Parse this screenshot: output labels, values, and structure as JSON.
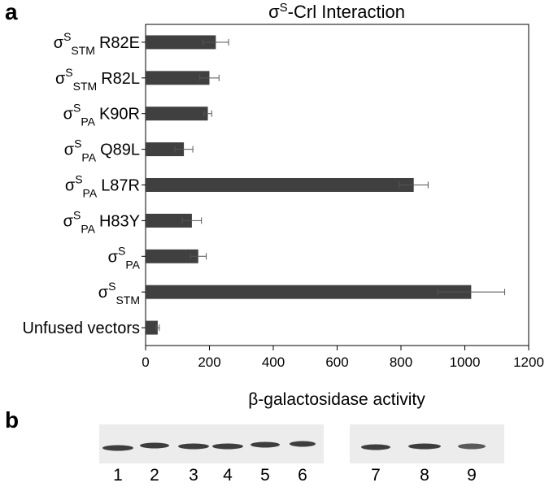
{
  "panel_label_a": "a",
  "chart_data": {
    "type": "bar",
    "orientation": "horizontal",
    "title": {
      "base": "σ",
      "sup": "S",
      "rest": "-Crl Interaction"
    },
    "categories": [
      {
        "base": "σ",
        "sup": "S",
        "sub": "STM",
        "suffix": "R82E"
      },
      {
        "base": "σ",
        "sup": "S",
        "sub": "STM",
        "suffix": "R82L"
      },
      {
        "base": "σ",
        "sup": "S",
        "sub": "PA",
        "suffix": "K90R"
      },
      {
        "base": "σ",
        "sup": "S",
        "sub": "PA",
        "suffix": "Q89L"
      },
      {
        "base": "σ",
        "sup": "S",
        "sub": "PA",
        "suffix": "L87R"
      },
      {
        "base": "σ",
        "sup": "S",
        "sub": "PA",
        "suffix": "H83Y"
      },
      {
        "base": "σ",
        "sup": "S",
        "sub": "PA"
      },
      {
        "base": "σ",
        "sup": "S",
        "sub": "STM"
      },
      {
        "suffix": "Unfused vectors"
      }
    ],
    "values": [
      220,
      200,
      195,
      120,
      840,
      145,
      165,
      1020,
      38
    ],
    "errors": [
      40,
      30,
      12,
      28,
      45,
      30,
      25,
      105,
      5
    ],
    "color": "#404040",
    "xlim": [
      0,
      1200
    ],
    "xticks": [
      0,
      200,
      400,
      600,
      800,
      1000,
      1200
    ],
    "xlabel": "β-galactosidase activity",
    "grid": false
  },
  "blot": {
    "panel_label": "b",
    "lanes": [
      "1",
      "2",
      "3",
      "4",
      "5",
      "6",
      "7",
      "8",
      "9"
    ]
  }
}
